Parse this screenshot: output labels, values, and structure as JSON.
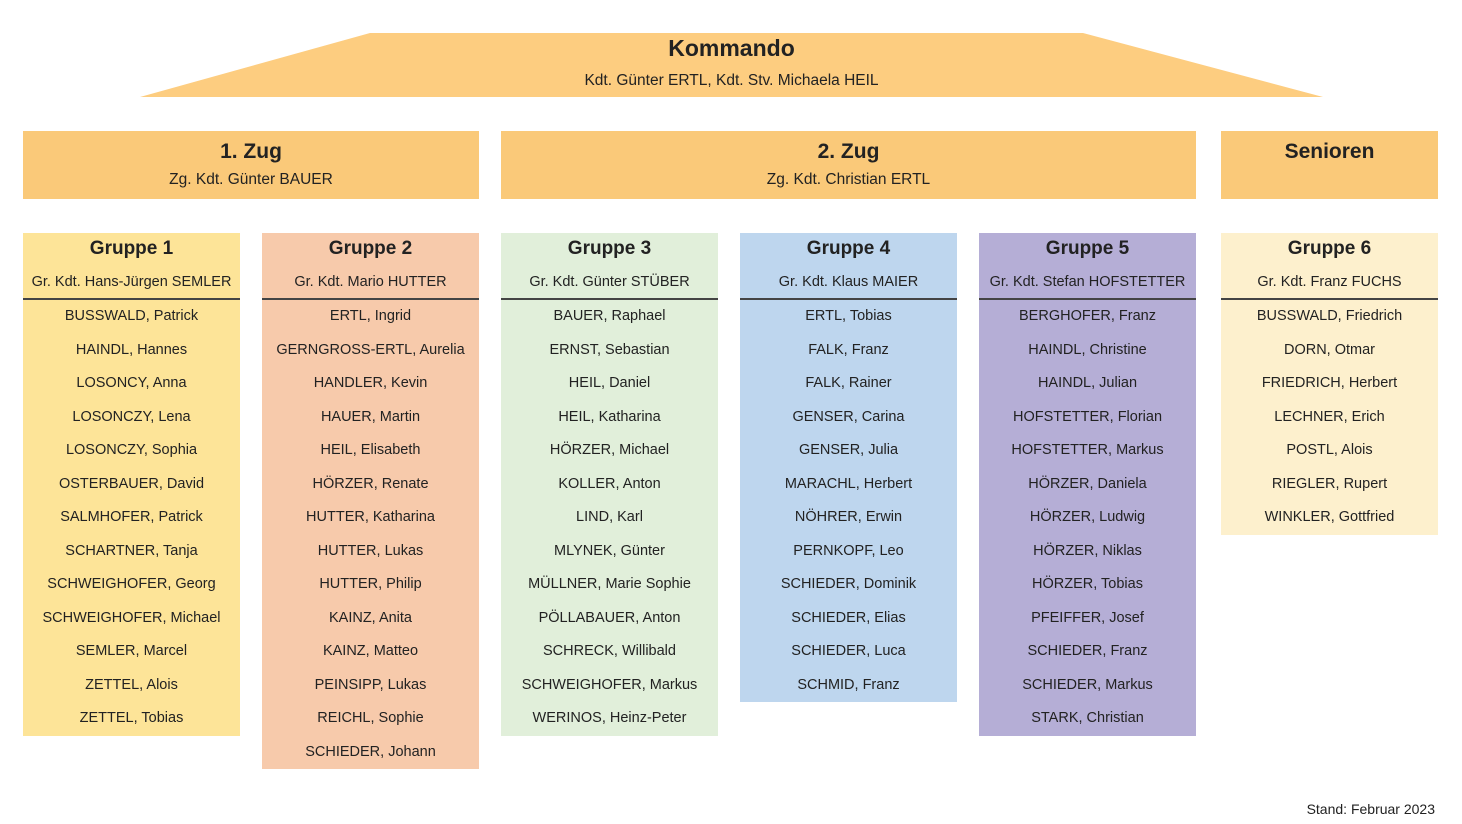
{
  "kommando": {
    "title": "Kommando",
    "leaders": "Kdt. Günter ERTL, Kdt. Stv. Michaela HEIL",
    "color": "#fdcd80"
  },
  "zuege": [
    {
      "title": "1. Zug",
      "leader": "Zg. Kdt. Günter BAUER"
    },
    {
      "title": "2. Zug",
      "leader": "Zg. Kdt. Christian ERTL"
    },
    {
      "title": "Senioren",
      "leader": ""
    }
  ],
  "groups": [
    {
      "title": "Gruppe 1",
      "leader": "Gr. Kdt. Hans-Jürgen SEMLER",
      "color": "#fde498",
      "members": [
        "BUSSWALD, Patrick",
        "HAINDL, Hannes",
        "LOSONCY, Anna",
        "LOSONCZY, Lena",
        "LOSONCZY, Sophia",
        "OSTERBAUER, David",
        "SALMHOFER, Patrick",
        "SCHARTNER, Tanja",
        "SCHWEIGHOFER, Georg",
        "SCHWEIGHOFER, Michael",
        "SEMLER, Marcel",
        "ZETTEL, Alois",
        "ZETTEL, Tobias"
      ]
    },
    {
      "title": "Gruppe 2",
      "leader": "Gr. Kdt. Mario HUTTER",
      "color": "#f7caab",
      "members": [
        "ERTL, Ingrid",
        "GERNGROSS-ERTL, Aurelia",
        "HANDLER, Kevin",
        "HAUER, Martin",
        "HEIL, Elisabeth",
        "HÖRZER, Renate",
        "HUTTER, Katharina",
        "HUTTER, Lukas",
        "HUTTER, Philip",
        "KAINZ, Anita",
        "KAINZ, Matteo",
        "PEINSIPP, Lukas",
        "REICHL, Sophie",
        "SCHIEDER, Johann"
      ]
    },
    {
      "title": "Gruppe 3",
      "leader": "Gr. Kdt. Günter STÜBER",
      "color": "#e1efda",
      "members": [
        "BAUER, Raphael",
        "ERNST, Sebastian",
        "HEIL, Daniel",
        "HEIL, Katharina",
        "HÖRZER, Michael",
        "KOLLER, Anton",
        "LIND, Karl",
        "MLYNEK, Günter",
        "MÜLLNER, Marie Sophie",
        "PÖLLABAUER, Anton",
        "SCHRECK, Willibald",
        "SCHWEIGHOFER, Markus",
        "WERINOS, Heinz-Peter"
      ]
    },
    {
      "title": "Gruppe 4",
      "leader": "Gr. Kdt. Klaus MAIER",
      "color": "#bed6ee",
      "members": [
        "ERTL, Tobias",
        "FALK, Franz",
        "FALK, Rainer",
        "GENSER, Carina",
        "GENSER, Julia",
        "MARACHL, Herbert",
        "NÖHRER, Erwin",
        "PERNKOPF, Leo",
        "SCHIEDER, Dominik",
        "SCHIEDER, Elias",
        "SCHIEDER, Luca",
        "SCHMID, Franz"
      ]
    },
    {
      "title": "Gruppe 5",
      "leader": "Gr. Kdt. Stefan HOFSTETTER",
      "color": "#b5aed6",
      "members": [
        "BERGHOFER, Franz",
        "HAINDL, Christine",
        "HAINDL, Julian",
        "HOFSTETTER, Florian",
        "HOFSTETTER, Markus",
        "HÖRZER, Daniela",
        "HÖRZER, Ludwig",
        "HÖRZER, Niklas",
        "HÖRZER, Tobias",
        "PFEIFFER, Josef",
        "SCHIEDER, Franz",
        "SCHIEDER, Markus",
        "STARK, Christian"
      ]
    },
    {
      "title": "Gruppe 6",
      "leader": "Gr. Kdt. Franz FUCHS",
      "color": "#fdf0cd",
      "members": [
        "BUSSWALD, Friedrich",
        "DORN, Otmar",
        "FRIEDRICH, Herbert",
        "LECHNER, Erich",
        "POSTL, Alois",
        "RIEGLER, Rupert",
        "WINKLER, Gottfried"
      ]
    }
  ],
  "footer": {
    "stand": "Stand: Februar 2023"
  }
}
